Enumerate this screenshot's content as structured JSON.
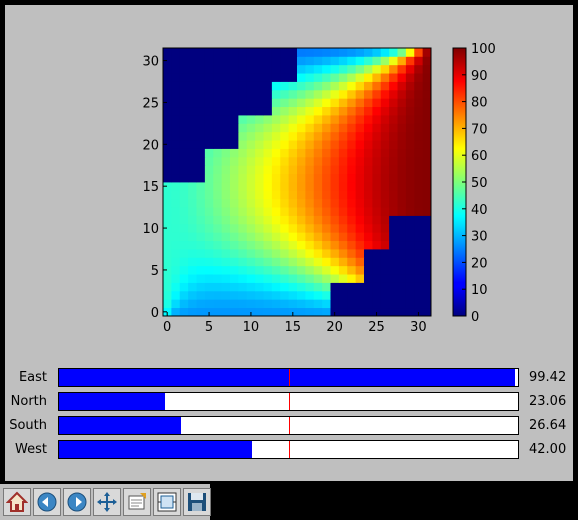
{
  "chart_data": {
    "type": "heatmap",
    "title": "",
    "xlabel": "",
    "ylabel": "",
    "grid_size": 32,
    "x_ticks": [
      0,
      5,
      10,
      15,
      20,
      25,
      30
    ],
    "y_ticks": [
      0,
      5,
      10,
      15,
      20,
      25,
      30
    ],
    "x_tick_labels": [
      "0",
      "5",
      "10",
      "15",
      "20",
      "25",
      "30"
    ],
    "y_tick_labels": [
      "0",
      "5",
      "10",
      "15",
      "20",
      "25",
      "30"
    ],
    "colorbar": {
      "range": [
        0,
        100
      ],
      "ticks": [
        0,
        10,
        20,
        30,
        40,
        50,
        60,
        70,
        80,
        90,
        100
      ],
      "tick_labels": [
        "0",
        "10",
        "20",
        "30",
        "40",
        "50",
        "60",
        "70",
        "80",
        "90",
        "100"
      ],
      "colormap": "jet"
    },
    "boundary_values": {
      "east": 99.42,
      "north": 23.06,
      "south": 26.64,
      "west": 42.0
    },
    "masked_value": 0,
    "masked_regions": [
      {
        "corner": "top-left",
        "steps": [
          {
            "x_max": 15,
            "y_min": 28
          },
          {
            "x_max": 12,
            "y_min": 24
          },
          {
            "x_max": 8,
            "y_min": 20
          },
          {
            "x_max": 4,
            "y_min": 16
          },
          {
            "x_max": 0,
            "y_min": 16
          }
        ]
      },
      {
        "corner": "bottom-right",
        "steps": [
          {
            "x_min": 27,
            "y_max": 11
          },
          {
            "x_min": 24,
            "y_max": 7
          },
          {
            "x_min": 20,
            "y_max": 3
          }
        ]
      }
    ]
  },
  "sliders": [
    {
      "label": "East",
      "value": 99.42,
      "value_text": "99.42",
      "min": 0,
      "max": 100,
      "init": 50
    },
    {
      "label": "North",
      "value": 23.06,
      "value_text": "23.06",
      "min": 0,
      "max": 100,
      "init": 50
    },
    {
      "label": "South",
      "value": 26.64,
      "value_text": "26.64",
      "min": 0,
      "max": 100,
      "init": 50
    },
    {
      "label": "West",
      "value": 42.0,
      "value_text": "42.00",
      "min": 0,
      "max": 100,
      "init": 50
    }
  ],
  "toolbar": {
    "buttons": [
      {
        "name": "home-button",
        "icon": "home-icon"
      },
      {
        "name": "back-button",
        "icon": "back-arrow-icon"
      },
      {
        "name": "forward-button",
        "icon": "forward-arrow-icon"
      },
      {
        "name": "pan-button",
        "icon": "move-arrows-icon"
      },
      {
        "name": "zoom-button",
        "icon": "zoom-rect-icon"
      },
      {
        "name": "subplots-button",
        "icon": "subplots-icon"
      },
      {
        "name": "save-button",
        "icon": "floppy-disk-icon"
      }
    ]
  },
  "colors": {
    "figure_bg": "#bfbfbf",
    "slider_fill": "#0000ff",
    "slider_init": "#ff0000",
    "masked": "#00007f"
  }
}
